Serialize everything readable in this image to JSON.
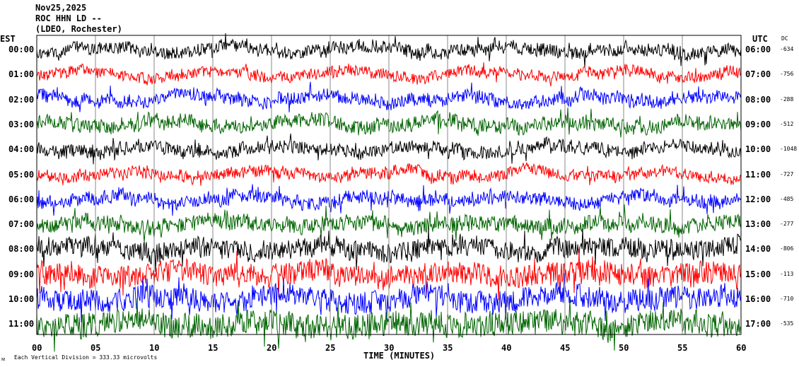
{
  "header": {
    "date": "Nov25,2025",
    "station": "ROC HHN LD --",
    "network": "(LDEO, Rochester)"
  },
  "chart_data": {
    "type": "line",
    "title": "Nov25,2025 ROC HHN LD -- (LDEO, Rochester)",
    "xlabel": "TIME (MINUTES)",
    "left_axis_label": "EST",
    "right_axis_label": "UTC",
    "dc_label": "DC",
    "xlim": [
      0,
      60
    ],
    "x_ticks": [
      "00",
      "05",
      "10",
      "15",
      "20",
      "25",
      "30",
      "35",
      "40",
      "45",
      "50",
      "55",
      "60"
    ],
    "grid": "vertical every 5 minutes",
    "scale_note": "Each Vertical Division =  333.33 microvolts",
    "trace_colors": [
      "#000000",
      "#ff0000",
      "#0000ff",
      "#006400"
    ],
    "rows": [
      {
        "est": "00:00",
        "utc": "06:00",
        "dc": "-634"
      },
      {
        "est": "01:00",
        "utc": "07:00",
        "dc": "-756"
      },
      {
        "est": "02:00",
        "utc": "08:00",
        "dc": "-288"
      },
      {
        "est": "03:00",
        "utc": "09:00",
        "dc": "-512"
      },
      {
        "est": "04:00",
        "utc": "10:00",
        "dc": "-1048"
      },
      {
        "est": "05:00",
        "utc": "11:00",
        "dc": "-727"
      },
      {
        "est": "06:00",
        "utc": "12:00",
        "dc": "-485"
      },
      {
        "est": "07:00",
        "utc": "13:00",
        "dc": "-277"
      },
      {
        "est": "08:00",
        "utc": "14:00",
        "dc": "-806"
      },
      {
        "est": "09:00",
        "utc": "15:00",
        "dc": "-113"
      },
      {
        "est": "10:00",
        "utc": "16:00",
        "dc": "-710"
      },
      {
        "est": "11:00",
        "utc": "17:00",
        "dc": "-535"
      }
    ]
  }
}
